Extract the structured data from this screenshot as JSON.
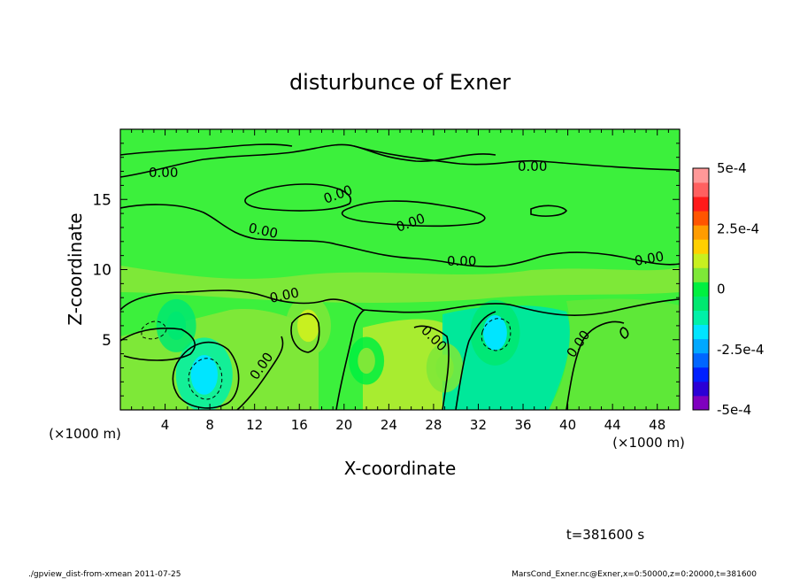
{
  "chart_data": {
    "type": "heatmap",
    "title": "disturbunce of Exner",
    "xlabel": "X-coordinate",
    "ylabel": "Z-coordinate",
    "x_unit_left": "(×1000 m)",
    "x_unit_right": "(×1000 m)",
    "xlim": [
      0,
      50
    ],
    "ylim": [
      0,
      20
    ],
    "x_ticks": [
      4,
      8,
      12,
      16,
      20,
      24,
      28,
      32,
      36,
      40,
      44,
      48
    ],
    "y_ticks": [
      5,
      10,
      15
    ],
    "colorbar": {
      "min": -0.0005,
      "max": 0.0005,
      "labels": [
        "5e-4",
        "2.5e-4",
        "0",
        "-2.5e-4",
        "-5e-4"
      ],
      "label_values": [
        0.0005,
        0.00025,
        0,
        -0.00025,
        -0.0005
      ],
      "colors": [
        "#7f00bf",
        "#2b00d6",
        "#0020ff",
        "#0066ff",
        "#00a8ff",
        "#00e5ff",
        "#00f0a8",
        "#00e870",
        "#00f040",
        "#7ee838",
        "#c8f020",
        "#ffd000",
        "#ff9c00",
        "#ff5500",
        "#ff1a1a",
        "#ff6060",
        "#ff9898"
      ]
    },
    "contour_label": "0.00",
    "anomalies": [
      {
        "x": 7.5,
        "z": 2.5,
        "value": -0.0002
      },
      {
        "x": 33.5,
        "z": 5.5,
        "value": -0.00015
      },
      {
        "x": 16.8,
        "z": 6.0,
        "value": 0.00012
      },
      {
        "x": 5.0,
        "z": 6.0,
        "value": -8e-05
      },
      {
        "x": 29.0,
        "z": 3.0,
        "value": 6e-05
      },
      {
        "x": 22.0,
        "z": 3.5,
        "value": 5e-05
      }
    ],
    "time_label": "t=381600 s"
  },
  "footer": {
    "left": "./gpview_dist-from-xmean   2011-07-25",
    "right": "MarsCond_Exner.nc@Exner,x=0:50000,z=0:20000,t=381600"
  }
}
